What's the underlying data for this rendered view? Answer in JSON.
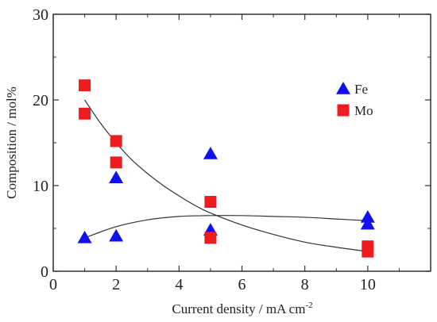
{
  "chart_data": {
    "type": "scatter",
    "title": "",
    "xlabel": "Current density / mA cm",
    "xlabel_sup": "-2",
    "ylabel": "Composition / mol%",
    "xlim": [
      0,
      12
    ],
    "ylim": [
      0,
      30
    ],
    "xticks": [
      0,
      2,
      4,
      6,
      8,
      10
    ],
    "yticks": [
      0,
      10,
      20,
      30
    ],
    "grid": false,
    "legend_position": "upper-right",
    "series": [
      {
        "name": "Fe",
        "marker": "triangle",
        "color": "#1010f0",
        "points": [
          {
            "x": 1,
            "y": 3.9
          },
          {
            "x": 2,
            "y": 4.1
          },
          {
            "x": 2,
            "y": 10.9
          },
          {
            "x": 5,
            "y": 4.8
          },
          {
            "x": 5,
            "y": 13.7
          },
          {
            "x": 10,
            "y": 5.5
          },
          {
            "x": 10,
            "y": 6.3
          }
        ],
        "fit_curve": [
          [
            1,
            3.9
          ],
          [
            2,
            5.2
          ],
          [
            3,
            6.0
          ],
          [
            4,
            6.4
          ],
          [
            5,
            6.5
          ],
          [
            6,
            6.5
          ],
          [
            7,
            6.4
          ],
          [
            8,
            6.3
          ],
          [
            9,
            6.1
          ],
          [
            10,
            5.9
          ]
        ]
      },
      {
        "name": "Mo",
        "marker": "square",
        "color": "#ee1c1c",
        "points": [
          {
            "x": 1,
            "y": 21.7
          },
          {
            "x": 1,
            "y": 18.4
          },
          {
            "x": 2,
            "y": 15.2
          },
          {
            "x": 2,
            "y": 12.7
          },
          {
            "x": 5,
            "y": 8.1
          },
          {
            "x": 5,
            "y": 3.9
          },
          {
            "x": 10,
            "y": 2.9
          },
          {
            "x": 10,
            "y": 2.3
          }
        ],
        "fit_curve": [
          [
            1,
            20.0
          ],
          [
            1.5,
            17.3
          ],
          [
            2,
            15.0
          ],
          [
            2.5,
            13.0
          ],
          [
            3,
            11.4
          ],
          [
            3.5,
            10.0
          ],
          [
            4,
            8.8
          ],
          [
            4.5,
            7.7
          ],
          [
            5,
            6.8
          ],
          [
            6,
            5.4
          ],
          [
            7,
            4.3
          ],
          [
            8,
            3.4
          ],
          [
            9,
            2.8
          ],
          [
            10,
            2.3
          ]
        ]
      }
    ]
  }
}
